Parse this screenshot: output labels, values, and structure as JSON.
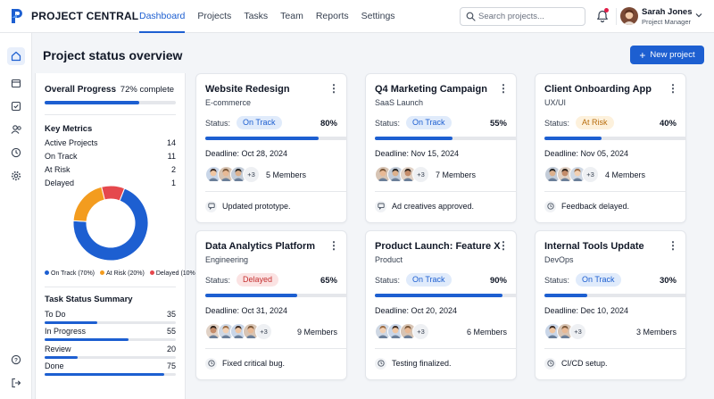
{
  "app": {
    "brand": "PROJECT CENTRAL"
  },
  "nav": {
    "items": [
      {
        "label": "Dashboard",
        "active": true
      },
      {
        "label": "Projects"
      },
      {
        "label": "Tasks"
      },
      {
        "label": "Team"
      },
      {
        "label": "Reports"
      },
      {
        "label": "Settings"
      }
    ]
  },
  "search": {
    "placeholder": "Search projects..."
  },
  "user": {
    "name": "Sarah Jones",
    "role": "Project Manager"
  },
  "sidebar": {
    "icons": [
      "home-icon",
      "calendar-icon",
      "checkbox-icon",
      "users-icon",
      "clock-icon",
      "gear-icon"
    ],
    "bottom_icons": [
      "help-icon",
      "logout-icon"
    ]
  },
  "header": {
    "title": "Project status overview",
    "new_button": "New project"
  },
  "summary": {
    "overall_label": "Overall Progress",
    "overall_value": "72% complete",
    "overall_pct": 0.72,
    "metrics_title": "Key Metrics",
    "metrics": [
      {
        "label": "Active Projects",
        "value": "14"
      },
      {
        "label": "On Track",
        "value": "11"
      },
      {
        "label": "At Risk",
        "value": "2"
      },
      {
        "label": "Delayed",
        "value": "1"
      }
    ],
    "donut": [
      {
        "label": "On Track (70%)",
        "value": 70,
        "color": "#1d5fd1"
      },
      {
        "label": "At Risk (20%)",
        "value": 20,
        "color": "#f39c1f"
      },
      {
        "label": "Delayed (10%)",
        "value": 10,
        "color": "#e5484d"
      }
    ],
    "task_title": "Task Status Summary",
    "tasks": [
      {
        "label": "To Do",
        "value": "35",
        "pct": 0.4
      },
      {
        "label": "In Progress",
        "value": "55",
        "pct": 0.64
      },
      {
        "label": "Review",
        "value": "20",
        "pct": 0.25
      },
      {
        "label": "Done",
        "value": "75",
        "pct": 0.91
      }
    ]
  },
  "projects": [
    {
      "title": "Website Redesign",
      "category": "E-commerce",
      "status_label": "Status:",
      "status": "On Track",
      "status_type": "ontrack",
      "percent": "80%",
      "progress": 0.8,
      "deadline": "Deadline: Oct 28, 2024",
      "avatar_count": 3,
      "more": "+3",
      "members": "5 Members",
      "activity": "Updated prototype.",
      "activity_icon": "message-icon"
    },
    {
      "title": "Q4 Marketing Campaign",
      "category": "SaaS Launch",
      "status_label": "Status:",
      "status": "On Track",
      "status_type": "ontrack",
      "percent": "55%",
      "progress": 0.55,
      "deadline": "Deadline: Nov 15, 2024",
      "avatar_count": 3,
      "more": "+3",
      "members": "7 Members",
      "activity": "Ad creatives approved.",
      "activity_icon": "message-icon"
    },
    {
      "title": "Client Onboarding App",
      "category": "UX/UI",
      "status_label": "Status:",
      "status": "At Risk",
      "status_type": "atrisk",
      "percent": "40%",
      "progress": 0.4,
      "deadline": "Deadline: Nov 05, 2024",
      "avatar_count": 3,
      "more": "+3",
      "members": "4 Members",
      "activity": "Feedback delayed.",
      "activity_icon": "clock-icon"
    },
    {
      "title": "Data Analytics Platform",
      "category": "Engineering",
      "status_label": "Status:",
      "status": "Delayed",
      "status_type": "delayed",
      "percent": "65%",
      "progress": 0.65,
      "deadline": "Deadline: Oct 31, 2024",
      "avatar_count": 4,
      "more": "+3",
      "members": "9 Members",
      "activity": "Fixed critical bug.",
      "activity_icon": "clock-icon"
    },
    {
      "title": "Product Launch: Feature X",
      "category": "Product",
      "status_label": "Status:",
      "status": "On Track",
      "status_type": "ontrack",
      "percent": "90%",
      "progress": 0.9,
      "deadline": "Deadline: Oct 20, 2024",
      "avatar_count": 3,
      "more": "+3",
      "members": "6 Members",
      "activity": "Testing finalized.",
      "activity_icon": "clock-icon"
    },
    {
      "title": "Internal Tools Update",
      "category": "DevOps",
      "status_label": "Status:",
      "status": "On Track",
      "status_type": "ontrack",
      "percent": "30%",
      "progress": 0.3,
      "deadline": "Deadline: Dec 10, 2024",
      "avatar_count": 2,
      "more": "+3",
      "members": "3 Members",
      "activity": "CI/CD setup.",
      "activity_icon": "clock-icon"
    }
  ]
}
